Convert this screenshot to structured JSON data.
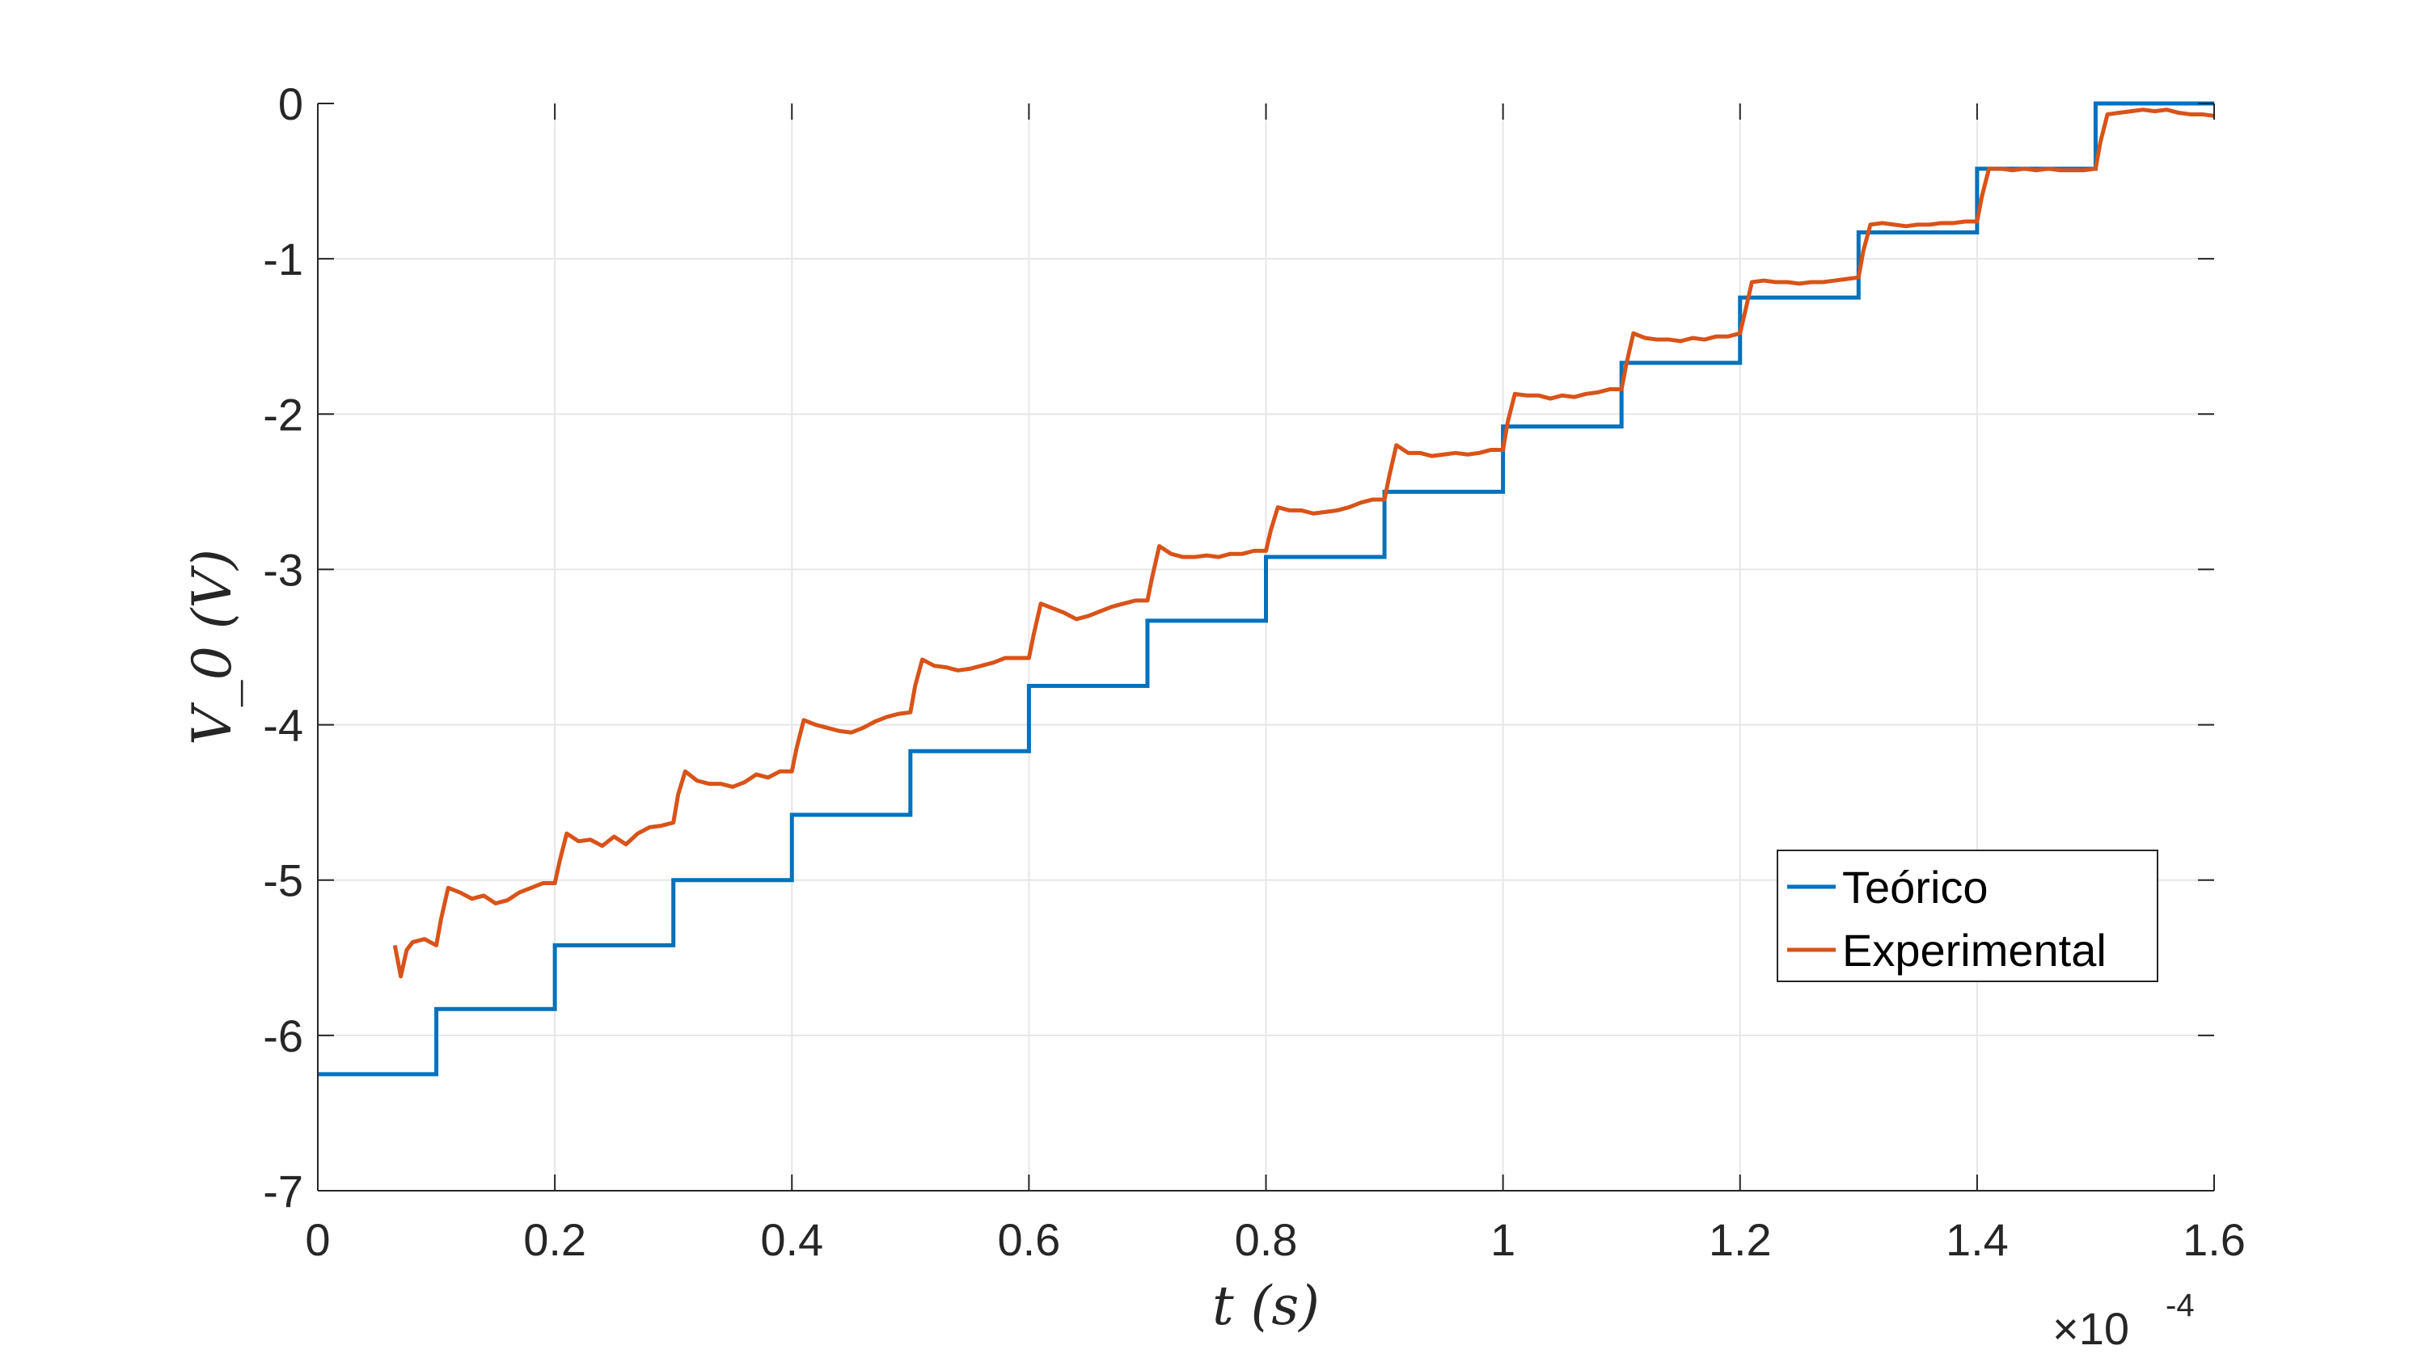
{
  "chart_data": {
    "type": "line",
    "title": "",
    "xlabel": "t (s)",
    "ylabel": "V_0 (V)",
    "x_scale_exponent": {
      "prefix": "×10",
      "exponent": "-4"
    },
    "xlim": [
      0,
      1.6
    ],
    "ylim": [
      -7,
      0
    ],
    "x_ticks": [
      0,
      0.2,
      0.4,
      0.6,
      0.8,
      1,
      1.2,
      1.4,
      1.6
    ],
    "x_tick_labels": [
      "0",
      "0.2",
      "0.4",
      "0.6",
      "0.8",
      "1",
      "1.2",
      "1.4",
      "1.6"
    ],
    "y_ticks": [
      0,
      -1,
      -2,
      -3,
      -4,
      -5,
      -6,
      -7
    ],
    "y_tick_labels": [
      "0",
      "-1",
      "-2",
      "-3",
      "-4",
      "-5",
      "-6",
      "-7"
    ],
    "grid": true,
    "legend_position": "bottom-right",
    "colors": {
      "teorico": "#0072BD",
      "experimental": "#D95319",
      "grid": "#E6E6E6",
      "axis": "#262626"
    },
    "series": [
      {
        "name": "Teórico",
        "kind": "step",
        "x_edges": [
          0,
          0.1,
          0.2,
          0.3,
          0.4,
          0.5,
          0.6,
          0.7,
          0.8,
          0.9,
          1.0,
          1.1,
          1.2,
          1.3,
          1.4,
          1.5,
          1.6
        ],
        "values": [
          -6.25,
          -5.83,
          -5.42,
          -5.0,
          -4.58,
          -4.17,
          -3.75,
          -3.33,
          -2.92,
          -2.5,
          -2.08,
          -1.67,
          -1.25,
          -0.83,
          -0.42,
          0.0
        ]
      },
      {
        "name": "Experimental",
        "kind": "line",
        "x": [
          0.065,
          0.07,
          0.075,
          0.08,
          0.09,
          0.1,
          0.104,
          0.11,
          0.12,
          0.13,
          0.14,
          0.15,
          0.16,
          0.17,
          0.18,
          0.19,
          0.2,
          0.204,
          0.21,
          0.22,
          0.23,
          0.24,
          0.25,
          0.26,
          0.27,
          0.28,
          0.29,
          0.3,
          0.304,
          0.31,
          0.32,
          0.33,
          0.34,
          0.35,
          0.36,
          0.37,
          0.38,
          0.39,
          0.4,
          0.404,
          0.41,
          0.42,
          0.43,
          0.44,
          0.45,
          0.46,
          0.47,
          0.48,
          0.49,
          0.5,
          0.504,
          0.51,
          0.52,
          0.53,
          0.54,
          0.55,
          0.56,
          0.57,
          0.58,
          0.59,
          0.6,
          0.604,
          0.61,
          0.62,
          0.63,
          0.64,
          0.65,
          0.66,
          0.67,
          0.68,
          0.69,
          0.7,
          0.704,
          0.71,
          0.72,
          0.73,
          0.74,
          0.75,
          0.76,
          0.77,
          0.78,
          0.79,
          0.8,
          0.804,
          0.81,
          0.82,
          0.83,
          0.84,
          0.85,
          0.86,
          0.87,
          0.88,
          0.89,
          0.9,
          0.904,
          0.91,
          0.92,
          0.93,
          0.94,
          0.95,
          0.96,
          0.97,
          0.98,
          0.99,
          1.0,
          1.004,
          1.01,
          1.02,
          1.03,
          1.04,
          1.05,
          1.06,
          1.07,
          1.08,
          1.09,
          1.1,
          1.104,
          1.11,
          1.12,
          1.13,
          1.14,
          1.15,
          1.16,
          1.17,
          1.18,
          1.19,
          1.2,
          1.204,
          1.21,
          1.22,
          1.23,
          1.24,
          1.25,
          1.26,
          1.27,
          1.28,
          1.29,
          1.3,
          1.304,
          1.31,
          1.32,
          1.33,
          1.34,
          1.35,
          1.36,
          1.37,
          1.38,
          1.39,
          1.4,
          1.404,
          1.41,
          1.42,
          1.43,
          1.44,
          1.45,
          1.46,
          1.47,
          1.48,
          1.49,
          1.5,
          1.504,
          1.51,
          1.52,
          1.53,
          1.54,
          1.55,
          1.56,
          1.57,
          1.58,
          1.59,
          1.6
        ],
        "y": [
          -5.42,
          -5.62,
          -5.45,
          -5.4,
          -5.38,
          -5.42,
          -5.25,
          -5.05,
          -5.08,
          -5.12,
          -5.1,
          -5.15,
          -5.13,
          -5.08,
          -5.05,
          -5.02,
          -5.02,
          -4.88,
          -4.7,
          -4.75,
          -4.74,
          -4.78,
          -4.72,
          -4.77,
          -4.7,
          -4.66,
          -4.65,
          -4.63,
          -4.45,
          -4.3,
          -4.36,
          -4.38,
          -4.38,
          -4.4,
          -4.37,
          -4.32,
          -4.34,
          -4.3,
          -4.3,
          -4.15,
          -3.97,
          -4.0,
          -4.02,
          -4.04,
          -4.05,
          -4.02,
          -3.98,
          -3.95,
          -3.93,
          -3.92,
          -3.75,
          -3.58,
          -3.62,
          -3.63,
          -3.65,
          -3.64,
          -3.62,
          -3.6,
          -3.57,
          -3.57,
          -3.57,
          -3.42,
          -3.22,
          -3.25,
          -3.28,
          -3.32,
          -3.3,
          -3.27,
          -3.24,
          -3.22,
          -3.2,
          -3.2,
          -3.05,
          -2.85,
          -2.9,
          -2.92,
          -2.92,
          -2.91,
          -2.92,
          -2.9,
          -2.9,
          -2.88,
          -2.88,
          -2.75,
          -2.6,
          -2.62,
          -2.62,
          -2.64,
          -2.63,
          -2.62,
          -2.6,
          -2.57,
          -2.55,
          -2.55,
          -2.4,
          -2.2,
          -2.25,
          -2.25,
          -2.27,
          -2.26,
          -2.25,
          -2.26,
          -2.25,
          -2.23,
          -2.23,
          -2.05,
          -1.87,
          -1.88,
          -1.88,
          -1.9,
          -1.88,
          -1.89,
          -1.87,
          -1.86,
          -1.84,
          -1.84,
          -1.68,
          -1.48,
          -1.51,
          -1.52,
          -1.52,
          -1.53,
          -1.51,
          -1.52,
          -1.5,
          -1.5,
          -1.48,
          -1.35,
          -1.15,
          -1.14,
          -1.15,
          -1.15,
          -1.16,
          -1.15,
          -1.15,
          -1.14,
          -1.13,
          -1.12,
          -0.95,
          -0.78,
          -0.77,
          -0.78,
          -0.79,
          -0.78,
          -0.78,
          -0.77,
          -0.77,
          -0.76,
          -0.76,
          -0.6,
          -0.42,
          -0.42,
          -0.43,
          -0.42,
          -0.43,
          -0.42,
          -0.43,
          -0.43,
          -0.43,
          -0.42,
          -0.25,
          -0.07,
          -0.06,
          -0.05,
          -0.04,
          -0.05,
          -0.04,
          -0.06,
          -0.07,
          -0.07,
          -0.08
        ]
      }
    ]
  }
}
